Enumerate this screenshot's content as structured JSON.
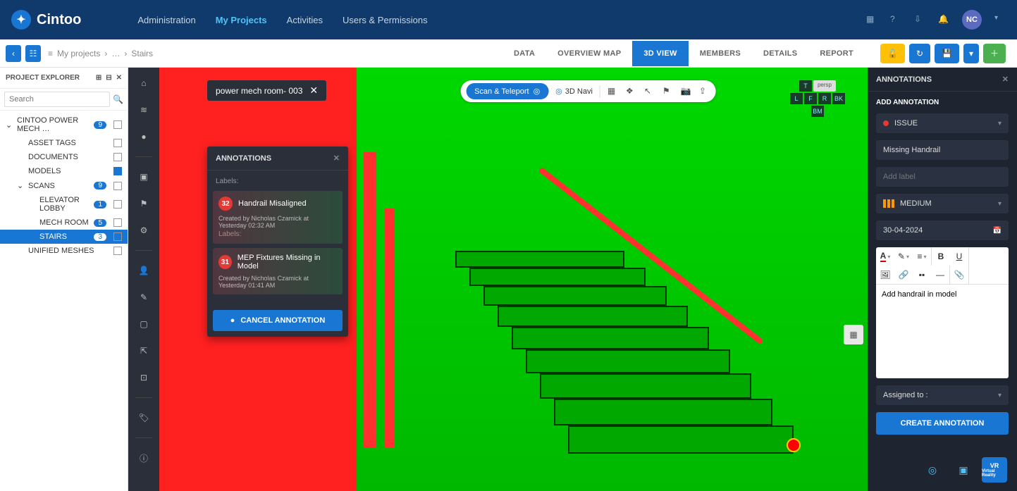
{
  "brand": "Cintoo",
  "topnav": {
    "items": [
      "Administration",
      "My Projects",
      "Activities",
      "Users & Permissions"
    ],
    "active": 1
  },
  "avatar": "NC",
  "breadcrumb": {
    "root": "My projects",
    "sep": "…",
    "leaf": "Stairs"
  },
  "tabs": {
    "items": [
      "DATA",
      "OVERVIEW MAP",
      "3D VIEW",
      "MEMBERS",
      "DETAILS",
      "REPORT"
    ],
    "active": 2
  },
  "explorer": {
    "title": "PROJECT EXPLORER",
    "search_placeholder": "Search",
    "tree": [
      {
        "level": 0,
        "label": "CINTOO POWER MECH …",
        "badge": "9",
        "chk": false,
        "chev": "v"
      },
      {
        "level": 1,
        "label": "ASSET TAGS",
        "chk": false
      },
      {
        "level": 1,
        "label": "DOCUMENTS",
        "chk": false
      },
      {
        "level": 1,
        "label": "MODELS",
        "chk": true
      },
      {
        "level": 1,
        "label": "SCANS",
        "badge": "9",
        "chk": false,
        "chev": "v"
      },
      {
        "level": 2,
        "label": "ELEVATOR LOBBY",
        "badge": "1",
        "chk": false
      },
      {
        "level": 2,
        "label": "MECH ROOM",
        "badge": "5",
        "chk": false
      },
      {
        "level": 2,
        "label": "STAIRS",
        "badge": "3",
        "chk": false,
        "selected": true
      },
      {
        "level": 1,
        "label": "UNIFIED MESHES",
        "chk": false
      }
    ]
  },
  "vp_chip": "power mech room- 003",
  "vp_center": {
    "pill": "Scan & Teleport",
    "navi": "3D Navi"
  },
  "vp_cube": {
    "persp": "persp",
    "faces": {
      "T": "T",
      "L": "L",
      "F": "F",
      "R": "R",
      "BK": "BK",
      "BM": "BM"
    }
  },
  "annot_list": {
    "title": "ANNOTATIONS",
    "labels_text": "Labels:",
    "items": [
      {
        "num": "32",
        "title": "Handrail Misaligned",
        "meta": "Created by Nicholas Czamick at Yesterday 02:32 AM"
      },
      {
        "num": "31",
        "title": "MEP Fixtures Missing in Model",
        "meta": "Created by Nicholas Czamick at Yesterday 01:41 AM"
      }
    ],
    "cancel": "CANCEL ANNOTATION"
  },
  "right_panel": {
    "title": "ANNOTATIONS",
    "add_label": "ADD ANNOTATION",
    "type": "ISSUE",
    "name": "Missing Handrail",
    "label_ph": "Add label",
    "priority": "MEDIUM",
    "date": "30-04-2024",
    "desc": "Add handrail in model",
    "assigned": "Assigned to :",
    "create": "CREATE ANNOTATION"
  },
  "vr_label": "VR",
  "colors": {
    "topbar": "#0f3a6b",
    "accent": "#1976d2",
    "panel": "#1e2530",
    "panel2": "#2a2f3a",
    "green": "#00c000",
    "red": "#ff2020",
    "issue": "#e53935",
    "warn": "#ff9800"
  }
}
